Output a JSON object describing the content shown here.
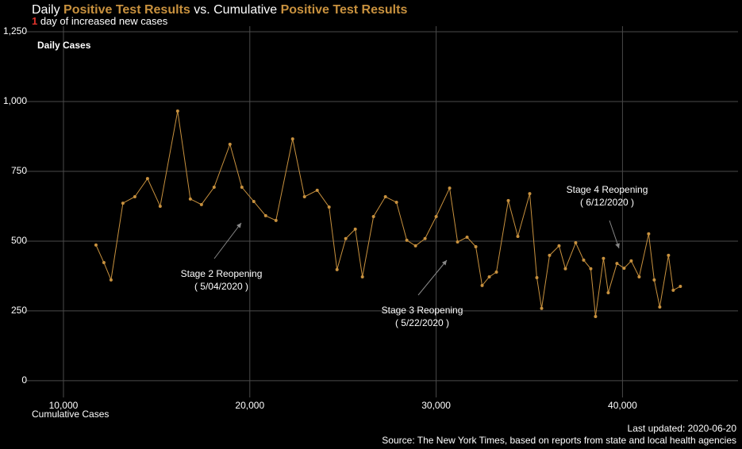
{
  "chart_data": {
    "type": "line",
    "title_segments": [
      {
        "text": "Daily ",
        "color": "#ffffff"
      },
      {
        "text": "Positive Test Results",
        "color": "#c8913e"
      },
      {
        "text": " vs. Cumulative ",
        "color": "#ffffff"
      },
      {
        "text": "Positive Test Results",
        "color": "#c8913e"
      }
    ],
    "subtitle_segments": [
      {
        "text": "1",
        "color": "#e0332b"
      },
      {
        "text": " day of increased new cases",
        "color": "#ffffff"
      }
    ],
    "y_label": "Daily Cases",
    "x_label": "Cumulative Cases",
    "footer": [
      "Last updated: 2020-06-20",
      "Source: The New York Times, based on reports from state and local health agencies"
    ],
    "annotations": [
      {
        "lines": [
          "Stage 2 Reopening",
          "( 5/04/2020 )"
        ]
      },
      {
        "lines": [
          "Stage 3 Reopening",
          "( 5/22/2020 )"
        ]
      },
      {
        "lines": [
          "Stage 4 Reopening",
          "( 6/12/2020 )"
        ]
      }
    ],
    "color": "#c8913e",
    "grid": true,
    "xlim": [
      8000,
      46200
    ],
    "ylim": [
      -60,
      1270
    ],
    "xticks": [
      {
        "value": 10000,
        "label": "10,000"
      },
      {
        "value": 20000,
        "label": "20,000"
      },
      {
        "value": 30000,
        "label": "30,000"
      },
      {
        "value": 40000,
        "label": "40,000"
      }
    ],
    "yticks": [
      0,
      250,
      500,
      750,
      {
        "value": 1000,
        "label": "1,000"
      },
      {
        "value": 1250,
        "label": "1,250"
      }
    ],
    "x": [
      11745,
      12170,
      12553,
      13191,
      13830,
      14511,
      15191,
      16128,
      16809,
      17404,
      18085,
      18936,
      19574,
      20213,
      20851,
      21404,
      22298,
      22936,
      23617,
      24255,
      24681,
      25149,
      25660,
      26043,
      26638,
      27277,
      27872,
      28426,
      28894,
      29404,
      30000,
      30723,
      31149,
      31660,
      32128,
      32468,
      32851,
      33234,
      33872,
      34383,
      35021,
      35404,
      35660,
      36085,
      36596,
      36936,
      37489,
      37915,
      38298,
      38553,
      38979,
      39234,
      39702,
      40085,
      40468,
      40894,
      41404,
      41702,
      42000,
      42468,
      42723,
      43106
    ],
    "values": [
      486,
      423,
      361,
      636,
      659,
      724,
      625,
      966,
      651,
      631,
      693,
      847,
      693,
      642,
      591,
      574,
      866,
      659,
      682,
      622,
      398,
      509,
      543,
      372,
      588,
      659,
      639,
      503,
      483,
      509,
      588,
      690,
      497,
      514,
      480,
      341,
      372,
      389,
      645,
      517,
      670,
      369,
      259,
      449,
      483,
      401,
      494,
      432,
      401,
      230,
      438,
      315,
      420,
      403,
      429,
      372,
      526,
      361,
      264,
      449,
      324,
      338
    ]
  }
}
